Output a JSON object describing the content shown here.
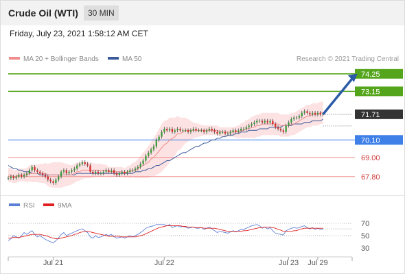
{
  "header": {
    "instrument": "Crude Oil (WTI)",
    "timeframe": "30 MIN",
    "datetime": "Friday, July 23, 2021 1:58:12 AM CET"
  },
  "credit": "Research © 2021 Trading Central",
  "legend": {
    "ma20": {
      "label": "MA 20 + Bollinger Bands",
      "color": "#f08c8c"
    },
    "ma50": {
      "label": "MA 50",
      "color": "#3a5a9c"
    }
  },
  "rsi_legend": {
    "rsi": {
      "label": "RSI",
      "color": "#5b7fd6"
    },
    "ma9": {
      "label": "9MA",
      "color": "#e02020"
    }
  },
  "colors": {
    "resistance": "#55a51c",
    "pivot": "#3f7fe8",
    "support": "#f08c8c",
    "last": "#333333",
    "arrow": "#2b5aa6",
    "band_fill": "#fce2e2",
    "candle_up": "#3a9a3a",
    "candle_down": "#d42a2a"
  },
  "chart_data": [
    {
      "type": "candlestick",
      "ylim": [
        66.8,
        74.8
      ],
      "x_tick_labels": [
        "Jul 21",
        "Jul 22",
        "Jul 23",
        "Jul 29"
      ],
      "x_tick_positions": [
        17,
        59,
        106,
        117
      ],
      "x_range": [
        0,
        130
      ],
      "levels": [
        {
          "value": 74.25,
          "label": "74.25",
          "kind": "resistance"
        },
        {
          "value": 73.15,
          "label": "73.15",
          "kind": "resistance"
        },
        {
          "value": 71.71,
          "label": "71.71",
          "kind": "last"
        },
        {
          "value": 70.1,
          "label": "70.10",
          "kind": "pivot"
        },
        {
          "value": 69.0,
          "label": "69.00",
          "kind": "support"
        },
        {
          "value": 67.8,
          "label": "67.80",
          "kind": "support"
        }
      ],
      "projection": {
        "from": [
          119,
          71.71
        ],
        "to": [
          132,
          74.25
        ]
      },
      "close": [
        67.7,
        67.8,
        67.7,
        67.8,
        67.9,
        67.8,
        67.9,
        68.0,
        68.2,
        68.4,
        68.2,
        68.1,
        68.0,
        67.9,
        67.8,
        67.6,
        67.5,
        67.4,
        67.6,
        67.8,
        68.1,
        68.2,
        68.0,
        68.1,
        68.2,
        68.3,
        68.5,
        68.6,
        68.7,
        68.6,
        68.5,
        68.1,
        68.0,
        68.1,
        68.0,
        68.0,
        68.1,
        68.2,
        68.1,
        68.2,
        68.0,
        67.9,
        68.0,
        68.1,
        68.0,
        68.1,
        68.2,
        68.2,
        68.3,
        68.4,
        68.6,
        68.8,
        69.1,
        69.3,
        69.5,
        69.7,
        70.1,
        70.3,
        70.6,
        70.8,
        70.7,
        70.8,
        70.6,
        70.7,
        70.8,
        70.7,
        70.7,
        70.7,
        70.6,
        70.7,
        70.8,
        70.7,
        70.7,
        70.7,
        70.6,
        70.7,
        70.8,
        70.7,
        70.6,
        70.5,
        70.6,
        70.6,
        70.5,
        70.5,
        70.6,
        70.7,
        70.6,
        70.7,
        70.8,
        70.8,
        70.9,
        71.0,
        71.1,
        71.2,
        71.3,
        71.3,
        71.2,
        71.3,
        71.2,
        71.3,
        71.1,
        70.9,
        70.8,
        70.7,
        70.6,
        71.0,
        71.2,
        71.4,
        71.5,
        71.5,
        71.6,
        71.8,
        71.9,
        71.8,
        71.7,
        71.8,
        71.7,
        71.8,
        71.7,
        71.71
      ],
      "ma20": [
        67.9,
        67.9,
        67.8,
        67.8,
        67.9,
        67.9,
        67.9,
        67.9,
        68.0,
        68.0,
        68.0,
        68.0,
        68.0,
        68.0,
        68.0,
        67.9,
        67.9,
        67.9,
        67.9,
        67.9,
        67.9,
        67.9,
        67.9,
        67.9,
        67.9,
        68.0,
        68.1,
        68.1,
        68.2,
        68.2,
        68.2,
        68.2,
        68.2,
        68.2,
        68.2,
        68.2,
        68.2,
        68.2,
        68.1,
        68.1,
        68.1,
        68.1,
        68.1,
        68.1,
        68.0,
        68.1,
        68.1,
        68.2,
        68.2,
        68.3,
        68.4,
        68.5,
        68.6,
        68.7,
        68.9,
        69.0,
        69.2,
        69.4,
        69.6,
        69.8,
        69.9,
        70.1,
        70.2,
        70.3,
        70.5,
        70.5,
        70.6,
        70.7,
        70.7,
        70.7,
        70.7,
        70.7,
        70.7,
        70.7,
        70.7,
        70.7,
        70.7,
        70.7,
        70.7,
        70.7,
        70.6,
        70.6,
        70.6,
        70.6,
        70.6,
        70.6,
        70.6,
        70.6,
        70.7,
        70.7,
        70.8,
        70.8,
        70.9,
        70.9,
        71.0,
        71.0,
        71.1,
        71.1,
        71.1,
        71.1,
        71.1,
        71.1,
        71.1,
        71.0,
        71.0,
        71.0,
        71.0,
        71.1,
        71.1,
        71.2,
        71.3,
        71.4,
        71.5,
        71.6,
        71.6,
        71.7,
        71.7,
        71.7,
        71.8,
        71.8
      ],
      "ma50": [
        68.5,
        68.4,
        68.3,
        68.3,
        68.2,
        68.2,
        68.1,
        68.1,
        68.1,
        68.0,
        68.0,
        68.0,
        67.9,
        67.9,
        67.9,
        67.9,
        67.9,
        67.9,
        67.9,
        67.9,
        67.9,
        67.9,
        67.9,
        67.9,
        67.9,
        67.9,
        68.0,
        68.0,
        68.0,
        68.0,
        68.0,
        68.0,
        68.0,
        68.0,
        68.0,
        68.0,
        68.0,
        68.0,
        68.0,
        68.0,
        68.0,
        68.0,
        68.0,
        68.0,
        68.0,
        68.0,
        68.0,
        68.0,
        68.1,
        68.1,
        68.1,
        68.2,
        68.2,
        68.3,
        68.3,
        68.4,
        68.5,
        68.5,
        68.6,
        68.7,
        68.8,
        68.8,
        68.9,
        69.0,
        69.1,
        69.2,
        69.3,
        69.3,
        69.4,
        69.5,
        69.6,
        69.7,
        69.7,
        69.8,
        69.9,
        69.9,
        70.0,
        70.1,
        70.1,
        70.2,
        70.2,
        70.3,
        70.3,
        70.4,
        70.4,
        70.4,
        70.5,
        70.5,
        70.6,
        70.6,
        70.6,
        70.7,
        70.7,
        70.7,
        70.7,
        70.8,
        70.8,
        70.8,
        70.8,
        70.9,
        70.9,
        70.9,
        70.9,
        70.9,
        71.0,
        71.0,
        71.0,
        71.0,
        71.1,
        71.1,
        71.1,
        71.1,
        71.2,
        71.2,
        71.2,
        71.3,
        71.3,
        71.3,
        71.3,
        71.4
      ],
      "band_width": [
        0.45,
        0.45,
        0.4,
        0.4,
        0.4,
        0.4,
        0.4,
        0.45,
        0.5,
        0.55,
        0.55,
        0.55,
        0.6,
        0.6,
        0.65,
        0.7,
        0.75,
        0.8,
        0.8,
        0.8,
        0.8,
        0.75,
        0.7,
        0.65,
        0.6,
        0.6,
        0.6,
        0.55,
        0.55,
        0.5,
        0.5,
        0.5,
        0.45,
        0.4,
        0.4,
        0.4,
        0.35,
        0.35,
        0.3,
        0.3,
        0.3,
        0.3,
        0.3,
        0.3,
        0.3,
        0.35,
        0.4,
        0.45,
        0.5,
        0.6,
        0.7,
        0.8,
        0.9,
        1.0,
        1.1,
        1.2,
        1.3,
        1.4,
        1.5,
        1.5,
        1.45,
        1.4,
        1.3,
        1.2,
        1.1,
        1.0,
        0.9,
        0.8,
        0.7,
        0.6,
        0.5,
        0.45,
        0.4,
        0.35,
        0.3,
        0.3,
        0.3,
        0.3,
        0.3,
        0.3,
        0.3,
        0.3,
        0.3,
        0.3,
        0.3,
        0.3,
        0.35,
        0.4,
        0.45,
        0.5,
        0.55,
        0.6,
        0.65,
        0.7,
        0.7,
        0.7,
        0.7,
        0.7,
        0.7,
        0.7,
        0.7,
        0.7,
        0.7,
        0.7,
        0.7,
        0.7,
        0.7,
        0.7,
        0.7,
        0.7,
        0.7,
        0.7,
        0.7,
        0.7,
        0.7,
        0.7,
        0.7,
        0.7,
        0.7,
        0.7
      ]
    },
    {
      "type": "line",
      "title": "RSI",
      "ylim": [
        20,
        80
      ],
      "y_ticks": [
        70,
        50,
        30
      ],
      "rsi": [
        42,
        45,
        50,
        48,
        46,
        50,
        55,
        52,
        55,
        58,
        52,
        48,
        50,
        47,
        44,
        42,
        40,
        38,
        42,
        46,
        52,
        55,
        50,
        52,
        54,
        56,
        58,
        60,
        61,
        58,
        55,
        48,
        46,
        50,
        47,
        48,
        50,
        52,
        50,
        52,
        48,
        46,
        47,
        48,
        46,
        48,
        50,
        48,
        50,
        52,
        55,
        58,
        62,
        64,
        65,
        66,
        68,
        68,
        68,
        68,
        66,
        68,
        63,
        65,
        66,
        64,
        65,
        64,
        62,
        63,
        64,
        62,
        62,
        63,
        60,
        62,
        64,
        61,
        58,
        55,
        57,
        56,
        55,
        54,
        56,
        58,
        56,
        58,
        60,
        60,
        62,
        64,
        66,
        67,
        68,
        66,
        62,
        64,
        61,
        63,
        58,
        54,
        53,
        52,
        51,
        58,
        60,
        62,
        63,
        62,
        63,
        65,
        66,
        63,
        61,
        63,
        60,
        62,
        60,
        61
      ],
      "ma9": [
        46,
        46,
        47,
        47,
        47,
        48,
        49,
        50,
        51,
        52,
        52,
        52,
        52,
        51,
        50,
        49,
        47,
        46,
        45,
        45,
        46,
        47,
        48,
        49,
        50,
        52,
        53,
        55,
        56,
        57,
        57,
        56,
        55,
        54,
        53,
        52,
        51,
        50,
        49,
        49,
        49,
        49,
        49,
        48,
        48,
        48,
        48,
        48,
        48,
        49,
        50,
        51,
        53,
        55,
        57,
        59,
        61,
        63,
        64,
        65,
        66,
        66,
        66,
        66,
        66,
        66,
        65,
        65,
        64,
        64,
        64,
        63,
        63,
        63,
        62,
        62,
        62,
        62,
        62,
        61,
        60,
        59,
        58,
        57,
        57,
        57,
        57,
        57,
        57,
        58,
        58,
        59,
        60,
        61,
        62,
        63,
        63,
        64,
        64,
        64,
        63,
        62,
        60,
        59,
        57,
        57,
        57,
        57,
        58,
        58,
        60,
        61,
        62,
        62,
        62,
        62,
        62,
        62,
        62,
        62
      ]
    }
  ]
}
